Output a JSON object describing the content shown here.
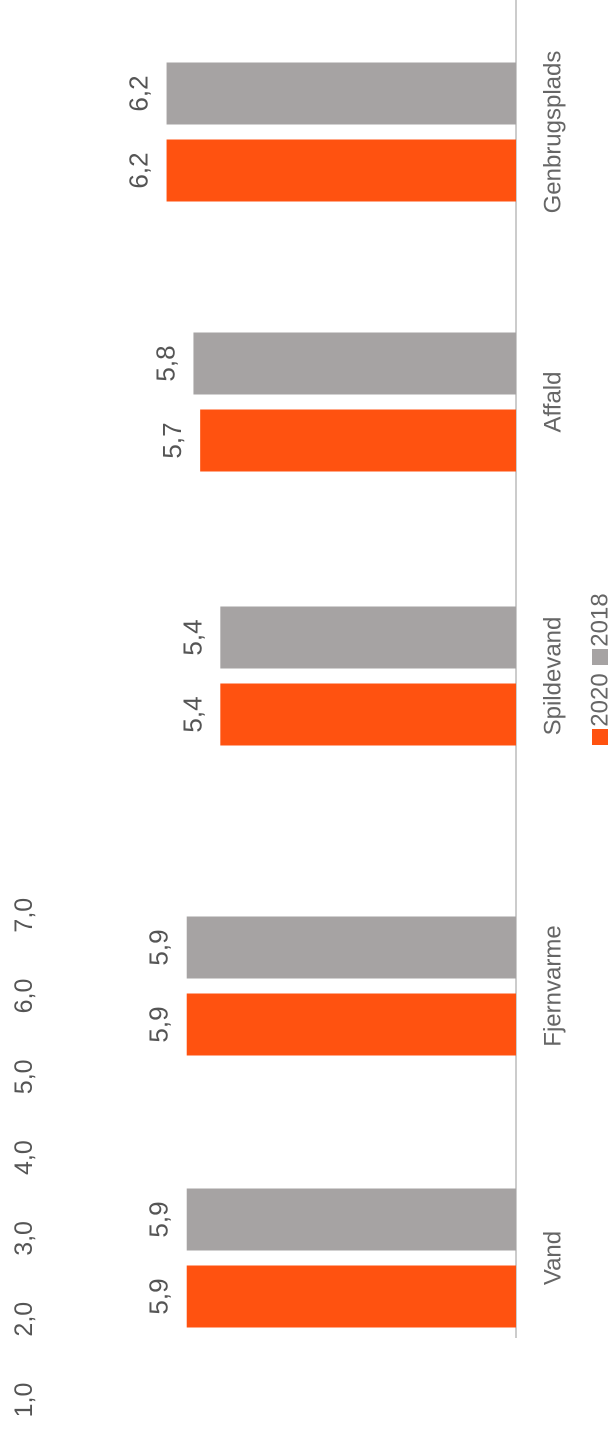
{
  "chart_data": {
    "type": "bar",
    "orientation": "rotated",
    "categories": [
      "Vand",
      "Fjernvarme",
      "Spildevand",
      "Affald",
      "Genbrugsplads"
    ],
    "series": [
      {
        "name": "2020",
        "color": "#FF5210",
        "values": [
          5.9,
          5.9,
          5.4,
          5.7,
          6.2
        ],
        "labels": [
          "5,9",
          "5,9",
          "5,4",
          "5,7",
          "6,2"
        ]
      },
      {
        "name": "2018",
        "color": "#A6A3A3",
        "values": [
          5.9,
          5.9,
          5.4,
          5.8,
          6.2
        ],
        "labels": [
          "5,9",
          "5,9",
          "5,4",
          "5,8",
          "6,2"
        ]
      }
    ],
    "ylim": [
      1.0,
      7.0
    ],
    "yticks": [
      1.0,
      2.0,
      3.0,
      4.0,
      5.0,
      6.0,
      7.0
    ],
    "ytick_labels": [
      "1,0",
      "2,0",
      "3,0",
      "4,0",
      "5,0",
      "6,0",
      "7,0"
    ],
    "grid": false,
    "legend": {
      "placement": "bottom",
      "entries": [
        "2020",
        "2018"
      ]
    }
  }
}
